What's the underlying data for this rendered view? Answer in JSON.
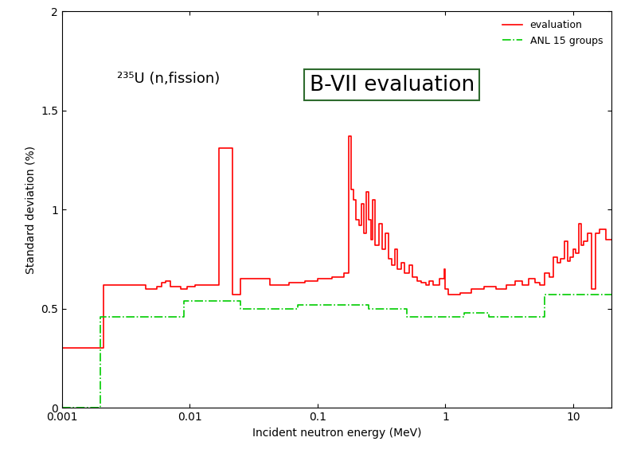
{
  "chart_data": {
    "type": "step",
    "xlabel": "Incident neutron energy (MeV)",
    "ylabel": "Standard deviation (%)",
    "annotations": [
      "²³⁵U (n,fission)",
      "B-VII evaluation"
    ],
    "log": "x",
    "grid": false,
    "legend": "upper right",
    "xlim": [
      0.001,
      20
    ],
    "xticks": [
      0.001,
      0.01,
      0.1,
      1,
      10
    ],
    "ylim": [
      0,
      2
    ],
    "yticks": [
      0,
      0.5,
      1,
      1.5,
      2
    ],
    "series": [
      {
        "name": "evaluation",
        "color": "#ff0000",
        "line_style": "solid",
        "x": [
          0.001,
          0.0021,
          0.0045,
          0.0055,
          0.006,
          0.0065,
          0.007,
          0.0085,
          0.0095,
          0.011,
          0.017,
          0.0215,
          0.025,
          0.042,
          0.06,
          0.08,
          0.1,
          0.13,
          0.16,
          0.175,
          0.183,
          0.19,
          0.2,
          0.21,
          0.22,
          0.23,
          0.24,
          0.25,
          0.26,
          0.27,
          0.28,
          0.3,
          0.32,
          0.34,
          0.36,
          0.38,
          0.4,
          0.42,
          0.45,
          0.48,
          0.52,
          0.55,
          0.6,
          0.65,
          0.7,
          0.75,
          0.8,
          0.9,
          0.98,
          1.0,
          1.05,
          1.3,
          1.6,
          2.0,
          2.5,
          3.0,
          3.5,
          4.0,
          4.5,
          5.0,
          5.5,
          6.0,
          6.5,
          7.0,
          7.5,
          8.0,
          8.5,
          9.0,
          9.5,
          10.0,
          10.5,
          11.0,
          11.5,
          12.0,
          13.0,
          14.0,
          15.0,
          16.0,
          18.0,
          20.0
        ],
        "values": [
          0.3,
          0.62,
          0.6,
          0.61,
          0.63,
          0.64,
          0.61,
          0.6,
          0.61,
          0.62,
          1.31,
          0.57,
          0.65,
          0.62,
          0.63,
          0.64,
          0.65,
          0.66,
          0.68,
          1.37,
          1.1,
          1.05,
          0.95,
          0.92,
          1.03,
          0.88,
          1.09,
          0.95,
          0.85,
          1.05,
          0.82,
          0.93,
          0.8,
          0.88,
          0.75,
          0.72,
          0.8,
          0.7,
          0.73,
          0.68,
          0.72,
          0.66,
          0.64,
          0.63,
          0.62,
          0.64,
          0.62,
          0.65,
          0.7,
          0.6,
          0.57,
          0.58,
          0.6,
          0.61,
          0.6,
          0.62,
          0.64,
          0.62,
          0.65,
          0.63,
          0.62,
          0.68,
          0.66,
          0.76,
          0.73,
          0.75,
          0.84,
          0.74,
          0.76,
          0.8,
          0.78,
          0.93,
          0.82,
          0.84,
          0.88,
          0.6,
          0.88,
          0.9,
          0.85,
          0.85
        ]
      },
      {
        "name": "ANL 15 groups",
        "color": "#00cc00",
        "line_style": "dashdot",
        "x": [
          0.001,
          0.002,
          0.009,
          0.025,
          0.07,
          0.25,
          0.5,
          1.4,
          2.2,
          6.0,
          20
        ],
        "values": [
          0,
          0.46,
          0.54,
          0.5,
          0.52,
          0.5,
          0.46,
          0.48,
          0.46,
          0.57,
          0.57
        ]
      }
    ]
  }
}
